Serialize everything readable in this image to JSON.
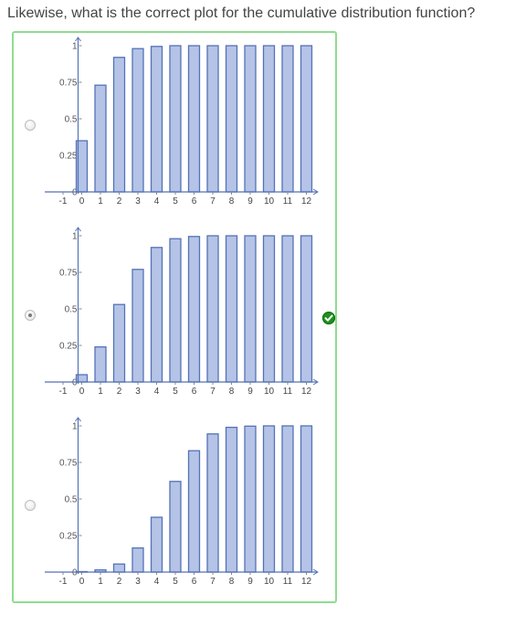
{
  "question": "Likewise, what is the correct plot for the cumulative distribution function?",
  "options": [
    {
      "id": "a",
      "selected": false,
      "correct": false
    },
    {
      "id": "b",
      "selected": true,
      "correct": true
    },
    {
      "id": "c",
      "selected": false,
      "correct": false
    }
  ],
  "colors": {
    "bar_fill": "#b4c3e6",
    "bar_stroke": "#5472b8",
    "axis": "#5472b8",
    "panel_border": "#8fdc8f",
    "correct": "#1f8f1f"
  },
  "chart_data": [
    {
      "type": "bar",
      "categories": [
        "0",
        "1",
        "2",
        "3",
        "4",
        "5",
        "6",
        "7",
        "8",
        "9",
        "10",
        "11",
        "12"
      ],
      "values": [
        0.35,
        0.73,
        0.92,
        0.98,
        0.995,
        1,
        1,
        1,
        1,
        1,
        1,
        1,
        1
      ],
      "x_ticks": [
        "-1",
        "0",
        "1",
        "2",
        "3",
        "4",
        "5",
        "6",
        "7",
        "8",
        "9",
        "10",
        "11",
        "12"
      ],
      "y_ticks": [
        "0",
        "0.25",
        "0.5",
        "0.75",
        "1"
      ],
      "xlim": [
        -1,
        12
      ],
      "ylim": [
        0,
        1
      ]
    },
    {
      "type": "bar",
      "categories": [
        "0",
        "1",
        "2",
        "3",
        "4",
        "5",
        "6",
        "7",
        "8",
        "9",
        "10",
        "11",
        "12"
      ],
      "values": [
        0.05,
        0.24,
        0.53,
        0.77,
        0.92,
        0.98,
        0.995,
        1,
        1,
        1,
        1,
        1,
        1
      ],
      "x_ticks": [
        "-1",
        "0",
        "1",
        "2",
        "3",
        "4",
        "5",
        "6",
        "7",
        "8",
        "9",
        "10",
        "11",
        "12"
      ],
      "y_ticks": [
        "0",
        "0.25",
        "0.5",
        "0.75",
        "1"
      ],
      "xlim": [
        -1,
        12
      ],
      "ylim": [
        0,
        1
      ]
    },
    {
      "type": "bar",
      "categories": [
        "0",
        "1",
        "2",
        "3",
        "4",
        "5",
        "6",
        "7",
        "8",
        "9",
        "10",
        "11",
        "12"
      ],
      "values": [
        0.003,
        0.015,
        0.055,
        0.165,
        0.375,
        0.62,
        0.83,
        0.945,
        0.99,
        0.998,
        1,
        1,
        1
      ],
      "x_ticks": [
        "-1",
        "0",
        "1",
        "2",
        "3",
        "4",
        "5",
        "6",
        "7",
        "8",
        "9",
        "10",
        "11",
        "12"
      ],
      "y_ticks": [
        "0",
        "0.25",
        "0.5",
        "0.75",
        "1"
      ],
      "xlim": [
        -1,
        12
      ],
      "ylim": [
        0,
        1
      ]
    }
  ]
}
